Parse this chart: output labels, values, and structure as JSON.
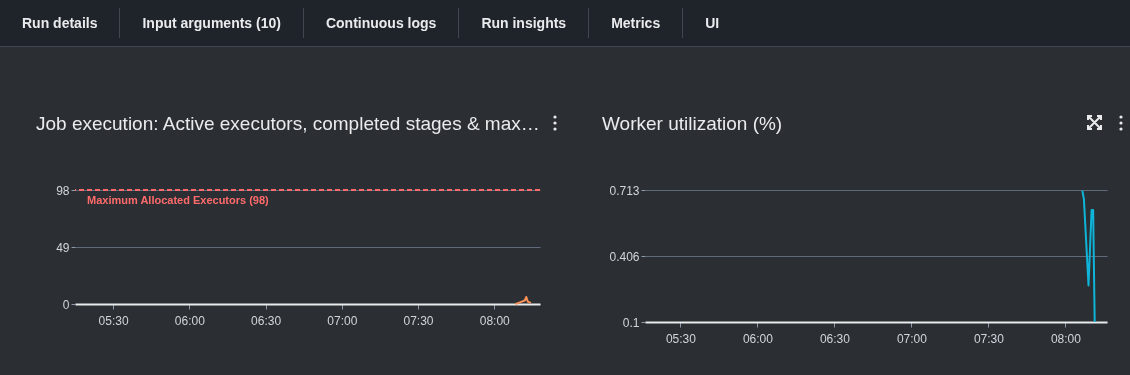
{
  "chart_data": [
    {
      "type": "other",
      "annotations": [
        "Run details",
        "Input arguments (10)",
        "Continuous logs",
        "Run insights",
        "Metrics",
        "UI"
      ]
    },
    {
      "type": "line",
      "title": "Job execution: Active executors, completed stages & max…",
      "xlim": [
        5.25,
        8.3
      ],
      "xticks": [
        {
          "value": 5.5,
          "label": "05:30"
        },
        {
          "value": 6,
          "label": "06:00"
        },
        {
          "value": 6.5,
          "label": "06:30"
        },
        {
          "value": 7,
          "label": "07:00"
        },
        {
          "value": 7.5,
          "label": "07:30"
        },
        {
          "value": 8,
          "label": "08:00"
        }
      ],
      "ylim": [
        0,
        98
      ],
      "yticks": [
        0,
        49,
        98
      ],
      "grid": "y",
      "series": [
        {
          "color": "#f89256",
          "x": [
            8.14,
            8.16,
            8.18,
            8.2,
            8.21,
            8.22,
            8.24
          ],
          "values": [
            0,
            1,
            2,
            3,
            6,
            2,
            1
          ]
        }
      ],
      "ref_lines": [
        {
          "axis": "y",
          "value": 98,
          "label": "Maximum Allocated Executors (98)",
          "color": "#ff6b6b",
          "line_style": "dashed"
        }
      ]
    },
    {
      "type": "line",
      "title": "Worker utilization (%)",
      "xlim": [
        5.27,
        8.27
      ],
      "xticks": [
        {
          "value": 5.5,
          "label": "05:30"
        },
        {
          "value": 6,
          "label": "06:00"
        },
        {
          "value": 6.5,
          "label": "06:30"
        },
        {
          "value": 7,
          "label": "07:00"
        },
        {
          "value": 7.5,
          "label": "07:30"
        },
        {
          "value": 8,
          "label": "08:00"
        }
      ],
      "ylim": [
        0.1,
        0.713
      ],
      "yticks": [
        0.1,
        0.406,
        0.713
      ],
      "grid": "y",
      "series": [
        {
          "color": "#0fb4d9",
          "x": [
            8.11,
            8.12,
            8.15,
            8.17,
            8.18,
            8.19
          ],
          "values": [
            0.71,
            0.67,
            0.27,
            0.62,
            0.62,
            0.1
          ]
        }
      ]
    }
  ]
}
